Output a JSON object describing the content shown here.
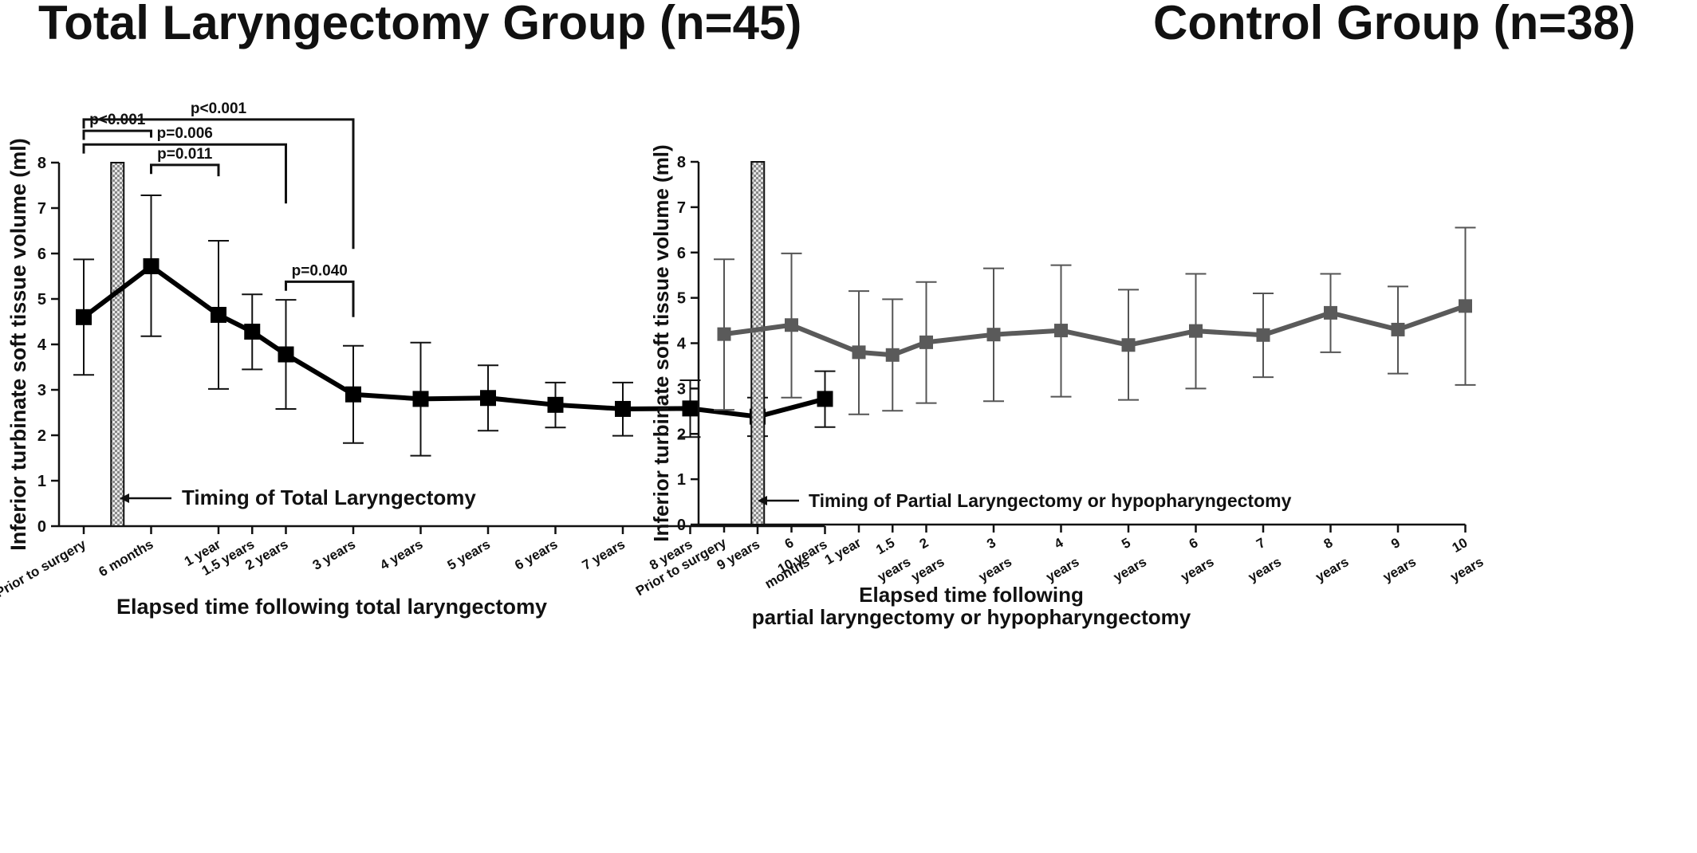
{
  "chart_data": [
    {
      "type": "line",
      "title": "Total Laryngectomy  Group (n=45)",
      "xlabel": [
        "Elapsed time following total laryngectomy"
      ],
      "ylabel": "Inferior turbinate soft tissue volume (ml)",
      "ylim": [
        0,
        8
      ],
      "yticks": [
        "0",
        "1",
        "2",
        "3",
        "4",
        "5",
        "6",
        "7",
        "8"
      ],
      "x_categories": [
        "Prior to surgery",
        "6 months",
        "1 year",
        "1.5 years",
        "2 years",
        "3 years",
        "4 years",
        "5 years",
        "6 years",
        "7 years",
        "8 years",
        "9 years",
        "10 years"
      ],
      "x_tick_labels": [
        [
          "Prior to surgery"
        ],
        [
          "6 months"
        ],
        [
          "1 year"
        ],
        [
          "1.5 years"
        ],
        [
          "2 years"
        ],
        [
          "3 years"
        ],
        [
          "4 years"
        ],
        [
          "5 years"
        ],
        [
          "6 years"
        ],
        [
          "7 years"
        ],
        [
          "8 years"
        ],
        [
          "9 years"
        ],
        [
          "10 years"
        ]
      ],
      "x_tick_positions": [
        0,
        1,
        2,
        2.5,
        3,
        4,
        5,
        6,
        7,
        8,
        9,
        10,
        11
      ],
      "series": [
        {
          "values": [
            4.6,
            5.72,
            4.65,
            4.28,
            3.78,
            2.9,
            2.8,
            2.82,
            2.67,
            2.58,
            2.59,
            2.41,
            2.8
          ],
          "error_upper": [
            5.87,
            7.28,
            6.28,
            5.1,
            4.98,
            3.97,
            4.04,
            3.54,
            3.16,
            3.16,
            3.21,
            2.83,
            3.41
          ],
          "error_lower": [
            3.33,
            4.18,
            3.02,
            3.45,
            2.58,
            1.83,
            1.55,
            2.1,
            2.17,
            1.99,
            1.96,
            1.98,
            2.18
          ],
          "color": "#000000"
        }
      ],
      "surgery_marker_index": 0.5,
      "annotation": "Timing of Total Laryngectomy",
      "significance": [
        {
          "label": "p<0.001",
          "from": 0,
          "to": 4,
          "level": 8.95,
          "drop_to": 6.1
        },
        {
          "label": "p=0.006",
          "from": 0,
          "to": 3,
          "level": 8.4,
          "drop_to": 7.1
        },
        {
          "label": "p<0.001",
          "from": 0,
          "to": 1,
          "level": 8.7,
          "drop_to": 8.55
        },
        {
          "label": "p=0.011",
          "from": 1,
          "to": 2,
          "level": 7.95,
          "drop_to": 7.7
        },
        {
          "label": "p=0.040",
          "from": 3,
          "to": 4,
          "level": 5.38,
          "drop_to": 4.6
        }
      ]
    },
    {
      "type": "line",
      "title": "Control Group (n=38)",
      "xlabel": [
        "Elapsed time following",
        "partial laryngectomy or hypopharyngectomy"
      ],
      "ylabel": "Inferior turbinate soft tissue volume (ml)",
      "ylim": [
        0,
        8
      ],
      "yticks": [
        "0",
        "1",
        "2",
        "3",
        "4",
        "5",
        "6",
        "7",
        "8"
      ],
      "x_categories": [
        "Prior to surgery",
        "6 months",
        "1 year",
        "1.5 years",
        "2 years",
        "3 years",
        "4 years",
        "5 years",
        "6 years",
        "7 years",
        "8 years",
        "9 years",
        "10 years"
      ],
      "x_tick_labels": [
        [
          "Prior to surgery"
        ],
        [
          "6",
          "months"
        ],
        [
          "1 year"
        ],
        [
          "1.5",
          "years"
        ],
        [
          "2",
          "years"
        ],
        [
          "3",
          "years"
        ],
        [
          "4",
          "years"
        ],
        [
          "5",
          "years"
        ],
        [
          "6",
          "years"
        ],
        [
          "7",
          "years"
        ],
        [
          "8",
          "years"
        ],
        [
          "9",
          "years"
        ],
        [
          "10",
          "years"
        ]
      ],
      "x_tick_positions": [
        0,
        1,
        2,
        2.5,
        3,
        4,
        5,
        6,
        7,
        8,
        9,
        10,
        11
      ],
      "series": [
        {
          "values": [
            4.2,
            4.4,
            3.8,
            3.74,
            4.02,
            4.19,
            4.28,
            3.96,
            4.27,
            4.18,
            4.67,
            4.3,
            4.82
          ],
          "error_upper": [
            5.85,
            5.98,
            5.15,
            4.97,
            5.35,
            5.65,
            5.72,
            5.18,
            5.53,
            5.1,
            5.53,
            5.25,
            6.55
          ],
          "error_lower": [
            2.53,
            2.8,
            2.43,
            2.51,
            2.68,
            2.72,
            2.82,
            2.75,
            3.0,
            3.25,
            3.8,
            3.33,
            3.08
          ],
          "color": "#5a5a5a"
        }
      ],
      "surgery_marker_index": 0.5,
      "annotation": "Timing of Partial Laryngectomy or hypopharyngectomy"
    }
  ]
}
